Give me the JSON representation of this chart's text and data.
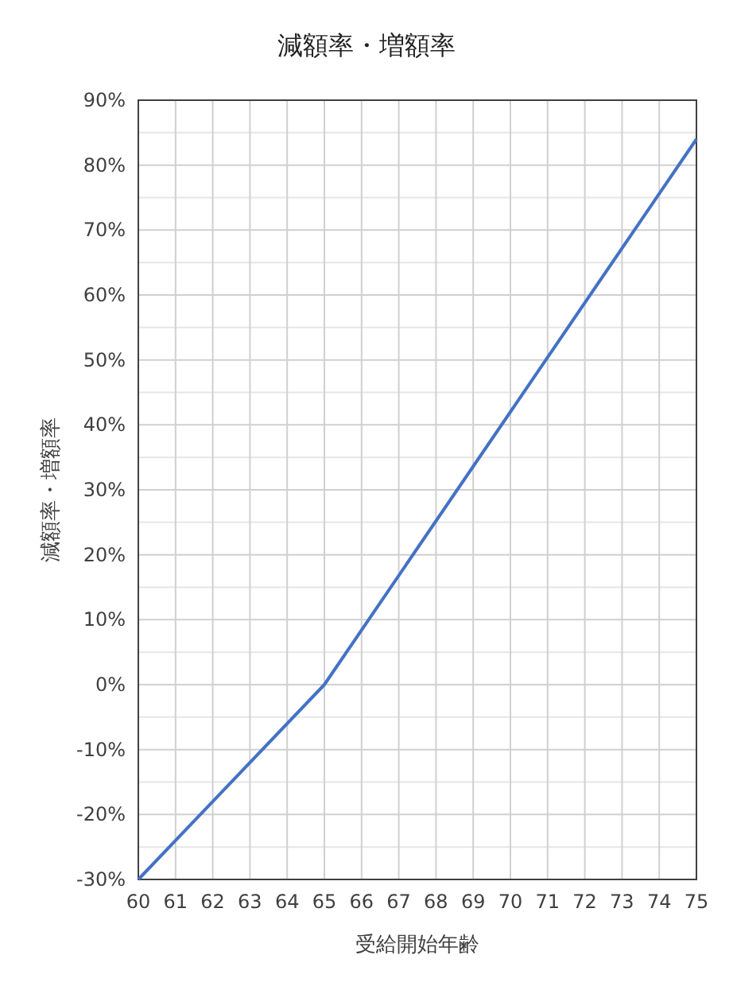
{
  "chart_data": {
    "type": "line",
    "title": "減額率・増額率",
    "xlabel": "受給開始年齢",
    "ylabel": "減額率・増額率",
    "x": [
      60,
      65,
      70,
      75
    ],
    "series": [
      {
        "color": "#4472c4",
        "values": [
          -30,
          0,
          42,
          84
        ]
      }
    ],
    "xlim": [
      60,
      75
    ],
    "xticks": [
      60,
      61,
      62,
      63,
      64,
      65,
      66,
      67,
      68,
      69,
      70,
      71,
      72,
      73,
      74,
      75
    ],
    "ylim": [
      -30,
      90
    ],
    "yticks": [
      {
        "value": -30,
        "label": "-30%"
      },
      {
        "value": -25,
        "label": null
      },
      {
        "value": -20,
        "label": "-20%"
      },
      {
        "value": -15,
        "label": null
      },
      {
        "value": -10,
        "label": "-10%"
      },
      {
        "value": -5,
        "label": null
      },
      {
        "value": 0,
        "label": "0%"
      },
      {
        "value": 5,
        "label": null
      },
      {
        "value": 10,
        "label": "10%"
      },
      {
        "value": 15,
        "label": null
      },
      {
        "value": 20,
        "label": "20%"
      },
      {
        "value": 25,
        "label": null
      },
      {
        "value": 30,
        "label": "30%"
      },
      {
        "value": 35,
        "label": null
      },
      {
        "value": 40,
        "label": "40%"
      },
      {
        "value": 45,
        "label": null
      },
      {
        "value": 50,
        "label": "50%"
      },
      {
        "value": 55,
        "label": null
      },
      {
        "value": 60,
        "label": "60%"
      },
      {
        "value": 65,
        "label": null
      },
      {
        "value": 70,
        "label": "70%"
      },
      {
        "value": 75,
        "label": null
      },
      {
        "value": 80,
        "label": "80%"
      },
      {
        "value": 85,
        "label": null
      },
      {
        "value": 90,
        "label": "90%"
      }
    ],
    "grid": true,
    "marker": "none",
    "line_style": "solid"
  }
}
